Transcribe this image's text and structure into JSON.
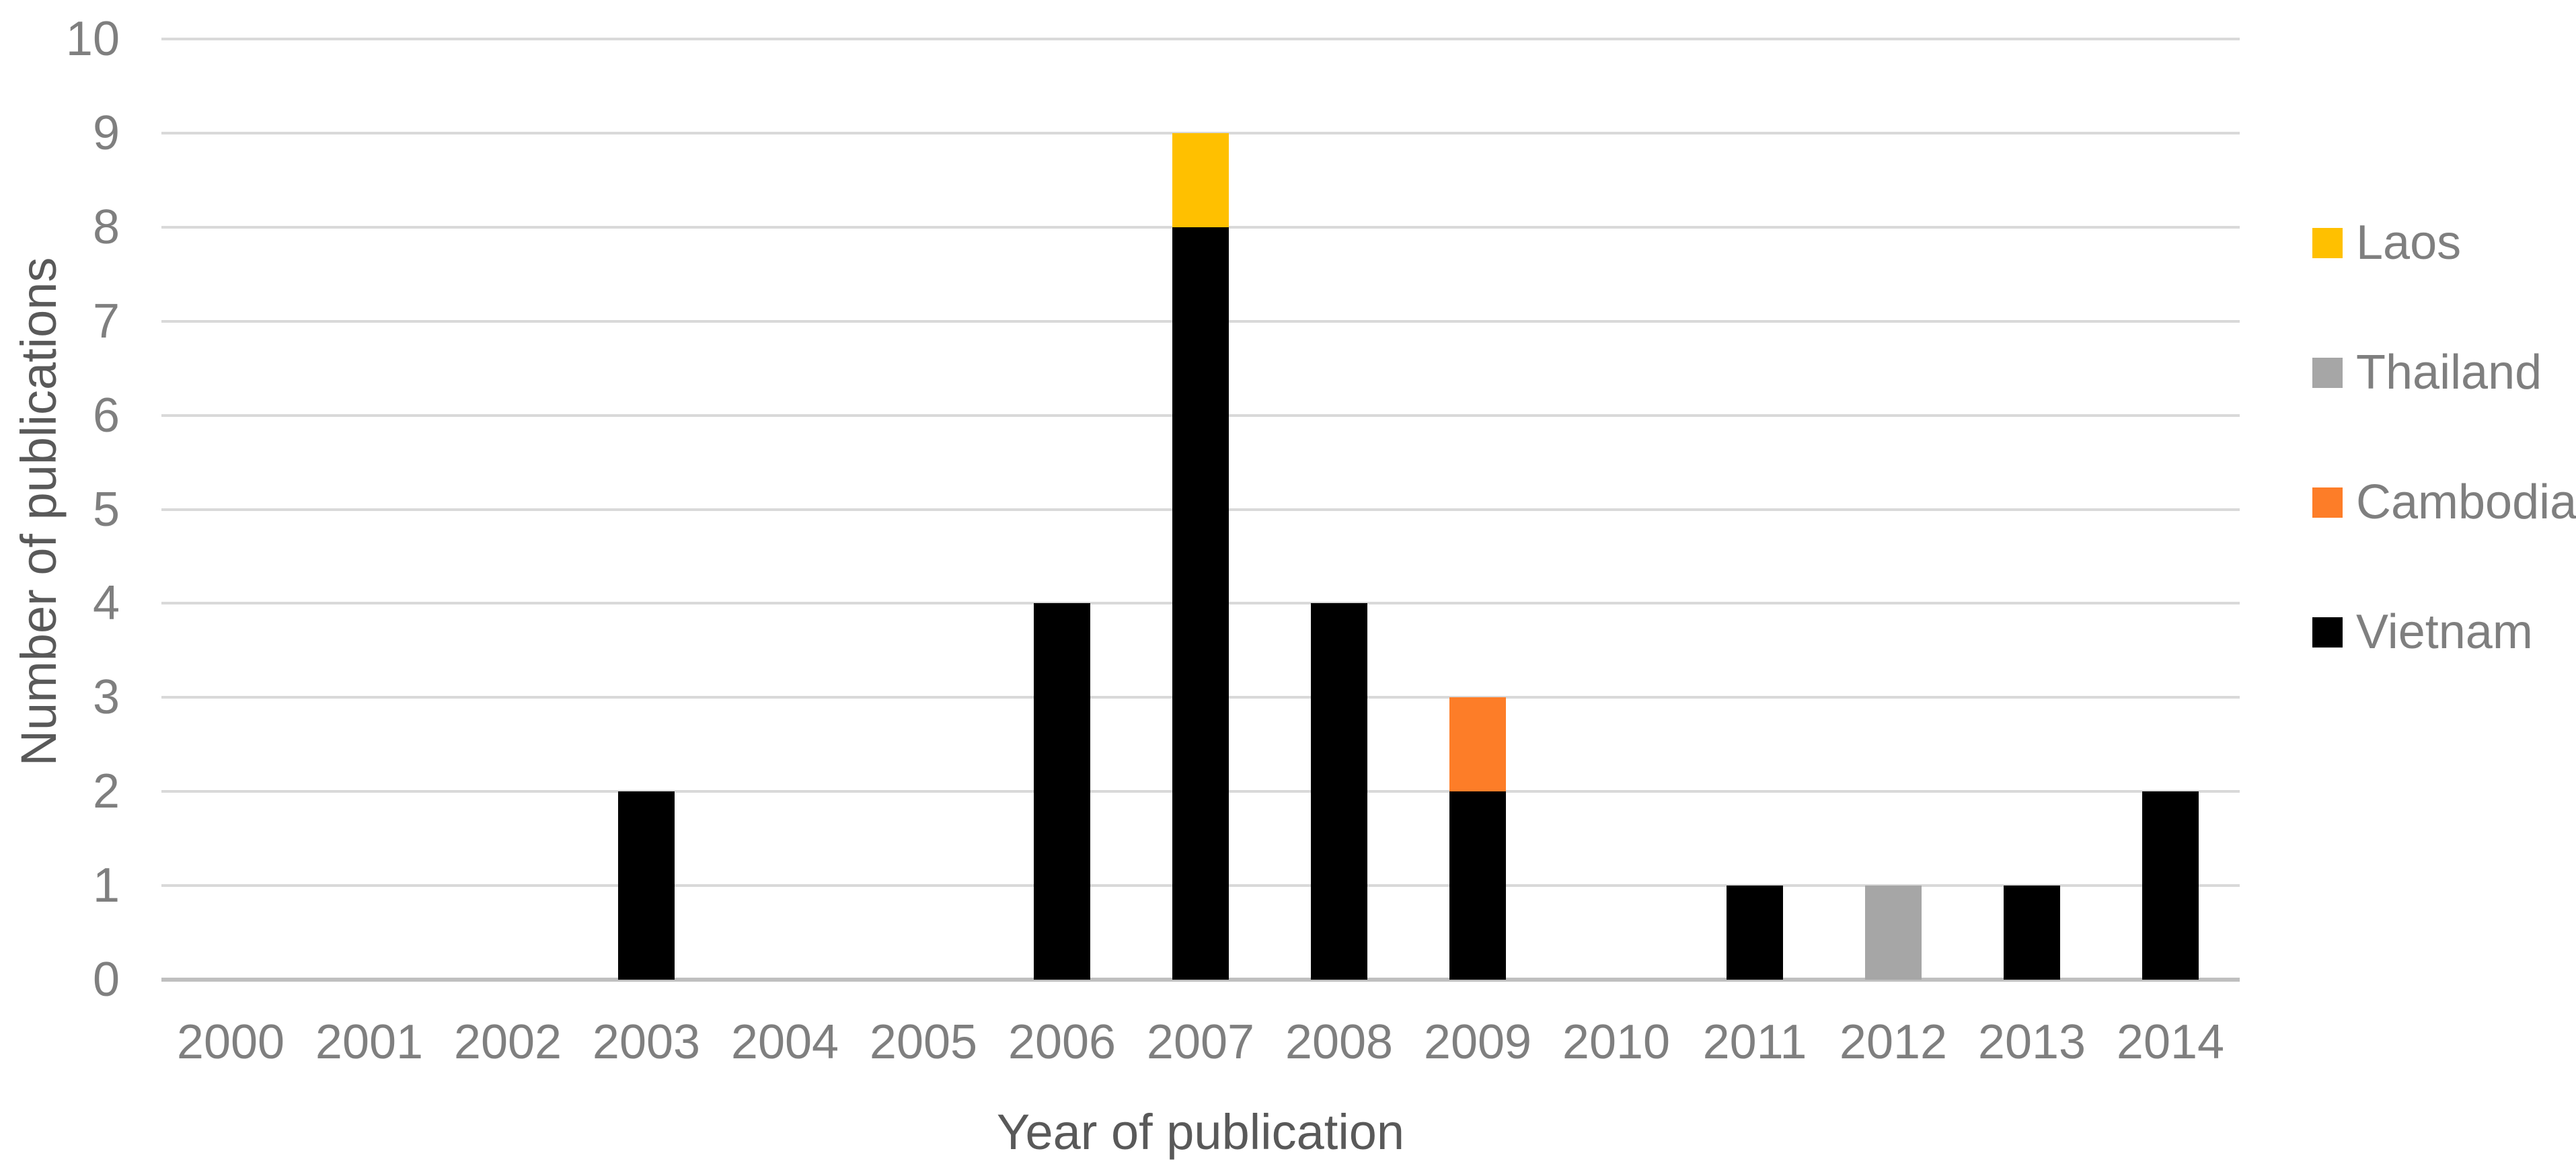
{
  "chart_data": {
    "type": "bar",
    "stacked": true,
    "title": "",
    "xlabel": "Year of publication",
    "ylabel": "Number of publications",
    "categories": [
      "2000",
      "2001",
      "2002",
      "2003",
      "2004",
      "2005",
      "2006",
      "2007",
      "2008",
      "2009",
      "2010",
      "2011",
      "2012",
      "2013",
      "2014"
    ],
    "series": [
      {
        "name": "Vietnam",
        "color": "#000000",
        "values": [
          0,
          0,
          0,
          2,
          0,
          0,
          4,
          8,
          4,
          2,
          0,
          1,
          0,
          1,
          2
        ]
      },
      {
        "name": "Cambodia",
        "color": "#FD7D28",
        "values": [
          0,
          0,
          0,
          0,
          0,
          0,
          0,
          0,
          0,
          1,
          0,
          0,
          0,
          0,
          0
        ]
      },
      {
        "name": "Thailand",
        "color": "#A6A6A6",
        "values": [
          0,
          0,
          0,
          0,
          0,
          0,
          0,
          0,
          0,
          0,
          0,
          0,
          1,
          0,
          0
        ]
      },
      {
        "name": "Laos",
        "color": "#FFC000",
        "values": [
          0,
          0,
          0,
          0,
          0,
          0,
          0,
          1,
          0,
          0,
          0,
          0,
          0,
          0,
          0
        ]
      }
    ],
    "ylim": [
      0,
      10
    ],
    "y_tick_labels": [
      "0",
      "1",
      "2",
      "3",
      "4",
      "5",
      "6",
      "7",
      "8",
      "9",
      "10"
    ],
    "grid": true,
    "gridline_color": "#D9D9D9",
    "axis_line_color": "#BFBFBF",
    "tick_label_color": "#7F7F7F",
    "axis_title_color": "#595959",
    "legend_position": "right",
    "legend": [
      {
        "label": "Laos",
        "color": "#FFC000"
      },
      {
        "label": "Thailand",
        "color": "#A6A6A6"
      },
      {
        "label": "Cambodia",
        "color": "#FD7D28"
      },
      {
        "label": "Vietnam",
        "color": "#000000"
      }
    ]
  }
}
